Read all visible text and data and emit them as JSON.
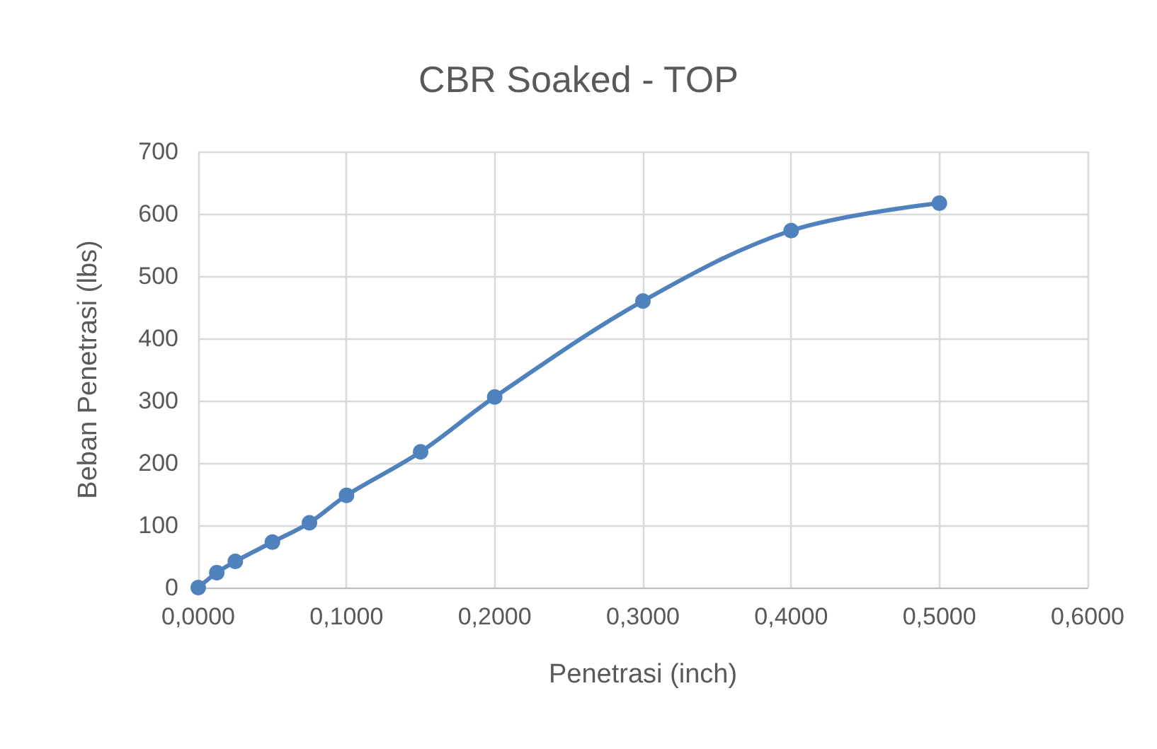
{
  "chart_data": {
    "type": "line",
    "title": "CBR Soaked - TOP",
    "xlabel": "Penetrasi (inch)",
    "ylabel": "Beban Penetrasi (lbs)",
    "x": [
      0,
      0.0125,
      0.025,
      0.05,
      0.075,
      0.1,
      0.15,
      0.2,
      0.3,
      0.4,
      0.5
    ],
    "series": [
      {
        "color": "#4f81bd",
        "values": [
          0,
          24,
          42,
          73,
          104,
          148,
          218,
          306,
          460,
          573,
          617
        ]
      }
    ],
    "xlim": [
      0,
      0.6
    ],
    "xticks": [
      {
        "value": 0,
        "label": "0,0000"
      },
      {
        "value": 0.1,
        "label": "0,1000"
      },
      {
        "value": 0.2,
        "label": "0,2000"
      },
      {
        "value": 0.3,
        "label": "0,3000"
      },
      {
        "value": 0.4,
        "label": "0,4000"
      },
      {
        "value": 0.5,
        "label": "0,5000"
      },
      {
        "value": 0.6,
        "label": "0,6000"
      }
    ],
    "ylim": [
      0,
      700
    ],
    "yticks": [
      0,
      100,
      200,
      300,
      400,
      500,
      600,
      700
    ],
    "grid": true,
    "marker": "circle",
    "line_style": "solid"
  }
}
